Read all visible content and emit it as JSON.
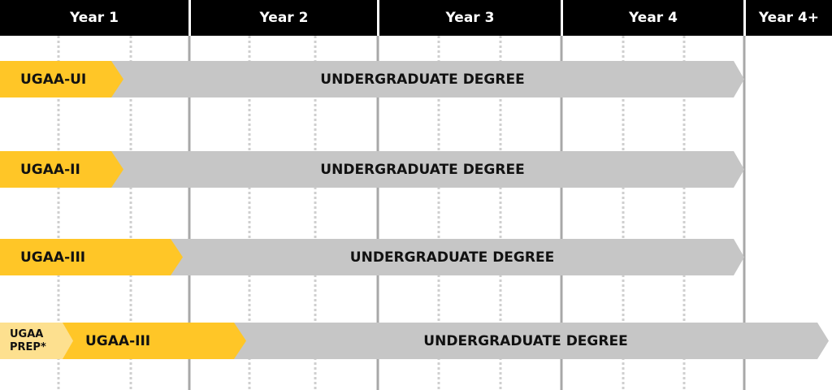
{
  "colors": {
    "header_bg": "#000000",
    "header_text": "#ffffff",
    "pathway": "#FFC627",
    "prep": "#FDE08F",
    "degree": "#C6C6C6",
    "divider": "#A8A8A8",
    "dotted": "#CFCFCF"
  },
  "columns": [
    "Year 1",
    "Year 2",
    "Year 3",
    "Year 4",
    "Year 4+"
  ],
  "rows": [
    {
      "segments": [
        {
          "label": "UGAA-UI",
          "kind": "pathway"
        },
        {
          "label": "UNDERGRADUATE DEGREE",
          "kind": "degree"
        }
      ]
    },
    {
      "segments": [
        {
          "label": "UGAA-II",
          "kind": "pathway"
        },
        {
          "label": "UNDERGRADUATE DEGREE",
          "kind": "degree"
        }
      ]
    },
    {
      "segments": [
        {
          "label": "UGAA-III",
          "kind": "pathway"
        },
        {
          "label": "UNDERGRADUATE DEGREE",
          "kind": "degree"
        }
      ]
    },
    {
      "segments": [
        {
          "label": "UGAA PREP*",
          "kind": "prep"
        },
        {
          "label": "UGAA-III",
          "kind": "pathway"
        },
        {
          "label": "UNDERGRADUATE DEGREE",
          "kind": "degree"
        }
      ]
    }
  ]
}
